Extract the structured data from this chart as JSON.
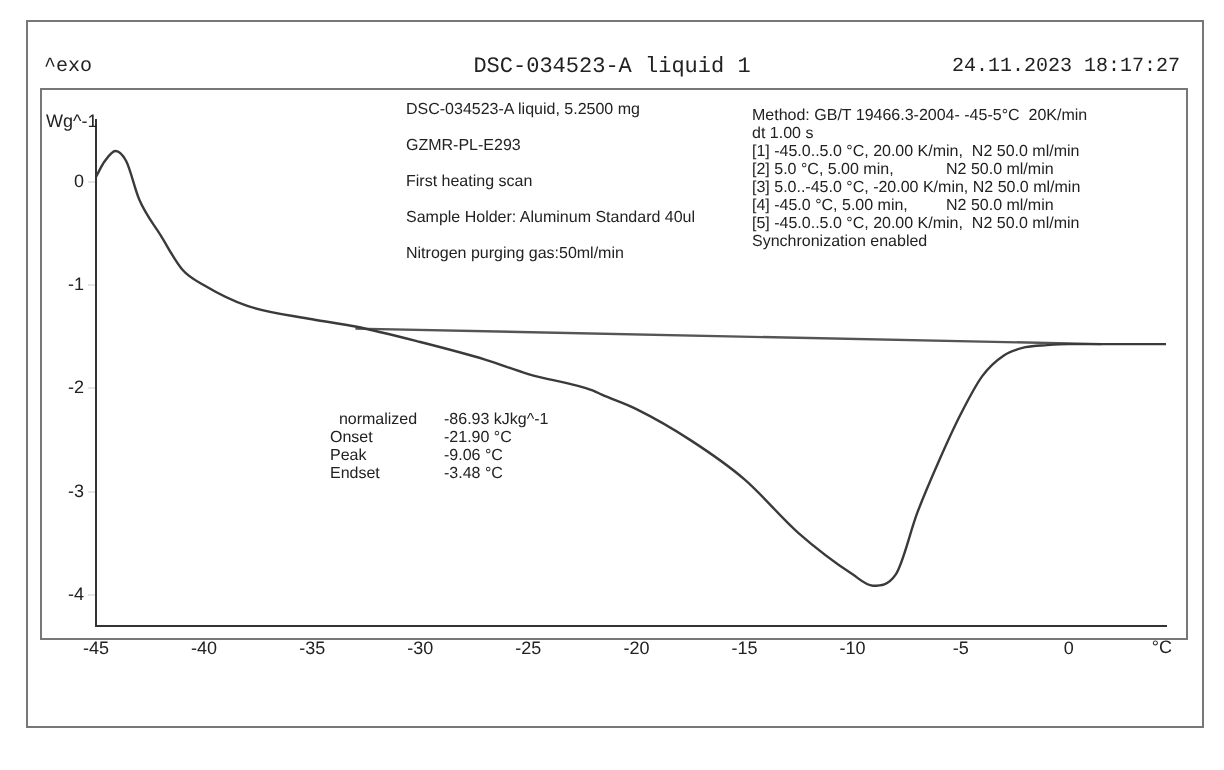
{
  "chart_data": {
    "type": "line",
    "title": "DSC-034523-A liquid 1",
    "xlabel": "°C",
    "ylabel": "Wg^-1",
    "annotations": [
      "^exo",
      "24.11.2023 18:17:27",
      "DSC-034523-A liquid, 5.2500 mg",
      "GZMR-PL-E293",
      "First heating scan",
      "Sample Holder: Aluminum Standard 40ul",
      "Nitrogen purging gas:50ml/min",
      "Method: GB/T 19466.3-2004- -45-5°C  20K/min\ndt 1.00 s\n[1] -45.0..5.0 °C, 20.00 K/min,  N2 50.0 ml/min\n[2] 5.0 °C, 5.00 min,\tN2 50.0 ml/min\n[3] 5.0..-45.0 °C, -20.00 K/min, N2 50.0 ml/min\n[4] -45.0 °C, 5.00 min,\tN2 50.0 ml/min\n[5] -45.0..5.0 °C, 20.00 K/min,  N2 50.0 ml/min\nSynchronization enabled",
      "  normalized\t-86.93 kJkg^-1\nOnset\t-21.90 °C\nPeak\t-9.06 °C\nEndset\t-3.48 °C"
    ],
    "xlim": [
      -45,
      4.5
    ],
    "xticks": [
      -45,
      -40,
      -35,
      -30,
      -25,
      -20,
      -15,
      -10,
      -5,
      0
    ],
    "ylim": [
      -4.3,
      0.6
    ],
    "yticks": [
      -4,
      -3,
      -2,
      -1,
      0
    ],
    "grid": false,
    "legend": false,
    "marker": "none",
    "series": [
      {
        "color": "#3a3a3a",
        "x": [
          -45,
          -44.6,
          -44.1,
          -43.6,
          -43,
          -42,
          -41,
          -40,
          -38,
          -35,
          -33,
          -30,
          -27,
          -25,
          -22,
          -21.6,
          -20,
          -17.5,
          -15,
          -12.5,
          -10,
          -9.06,
          -8,
          -7,
          -6,
          -5,
          -4,
          -3,
          -2,
          -1,
          0,
          1.5,
          4.5
        ],
        "values": [
          0.05,
          0.2,
          0.3,
          0.2,
          -0.17,
          -0.52,
          -0.85,
          -1.0,
          -1.2,
          -1.33,
          -1.4,
          -1.55,
          -1.72,
          -1.86,
          -2.02,
          -2.06,
          -2.2,
          -2.5,
          -2.88,
          -3.4,
          -3.8,
          -3.91,
          -3.8,
          -3.2,
          -2.7,
          -2.25,
          -1.88,
          -1.68,
          -1.6,
          -1.58,
          -1.57,
          -1.57,
          -1.57
        ]
      },
      {
        "color": "#555555",
        "x": [
          -33,
          1.5
        ],
        "values": [
          -1.42,
          -1.57
        ]
      }
    ]
  }
}
